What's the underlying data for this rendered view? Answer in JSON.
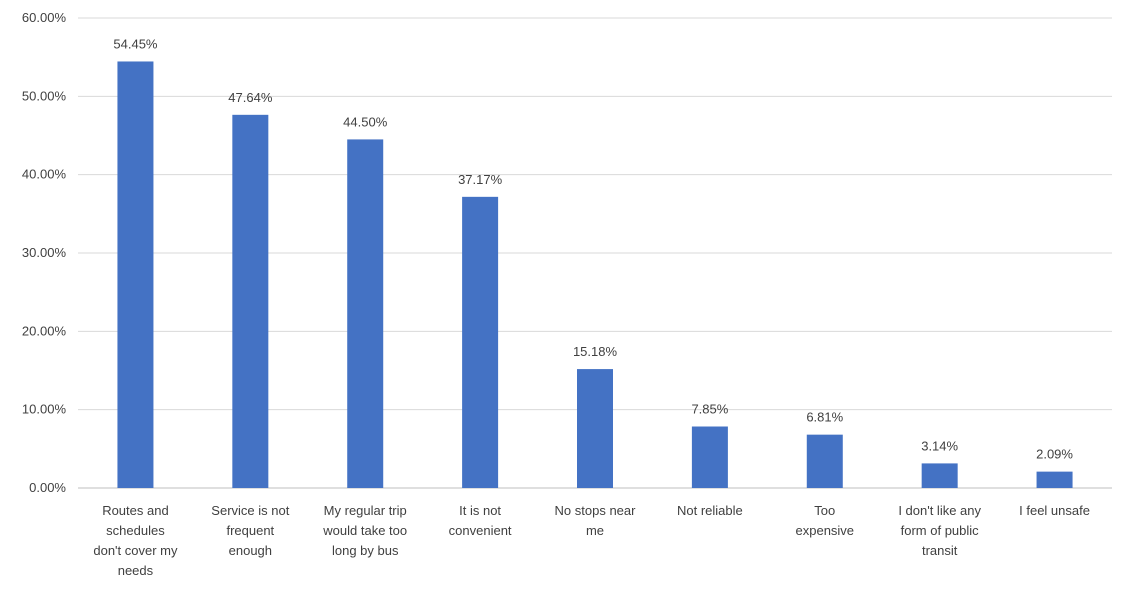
{
  "chart_data": {
    "type": "bar",
    "title": "",
    "xlabel": "",
    "ylabel": "",
    "ylim": [
      0,
      60
    ],
    "y_ticks": [
      "0.00%",
      "10.00%",
      "20.00%",
      "30.00%",
      "40.00%",
      "50.00%",
      "60.00%"
    ],
    "categories": [
      "Routes and schedules don't cover my needs",
      "Service is not frequent enough",
      "My regular trip would take too long by bus",
      "It is not convenient",
      "No stops near me",
      "Not reliable",
      "Too expensive",
      "I don't like any form of public transit",
      "I feel unsafe"
    ],
    "category_lines": [
      [
        "Routes and",
        "schedules",
        "don't cover my",
        "needs"
      ],
      [
        "Service is not",
        "frequent",
        "enough"
      ],
      [
        "My regular trip",
        "would take too",
        "long by bus"
      ],
      [
        "It is not",
        "convenient"
      ],
      [
        "No stops near",
        "me"
      ],
      [
        "Not reliable"
      ],
      [
        "Too",
        "expensive"
      ],
      [
        "I don't like any",
        "form of public",
        "transit"
      ],
      [
        "I feel unsafe"
      ]
    ],
    "values": [
      54.45,
      47.64,
      44.5,
      37.17,
      15.18,
      7.85,
      6.81,
      3.14,
      2.09
    ],
    "data_labels": [
      "54.45%",
      "47.64%",
      "44.50%",
      "37.17%",
      "15.18%",
      "7.85%",
      "6.81%",
      "3.14%",
      "2.09%"
    ],
    "grid": true,
    "legend": "none",
    "colors": {
      "bar": "#4472C4",
      "grid": "#D9D9D9",
      "axis": "#BFBFBF",
      "text": "#404040"
    }
  }
}
